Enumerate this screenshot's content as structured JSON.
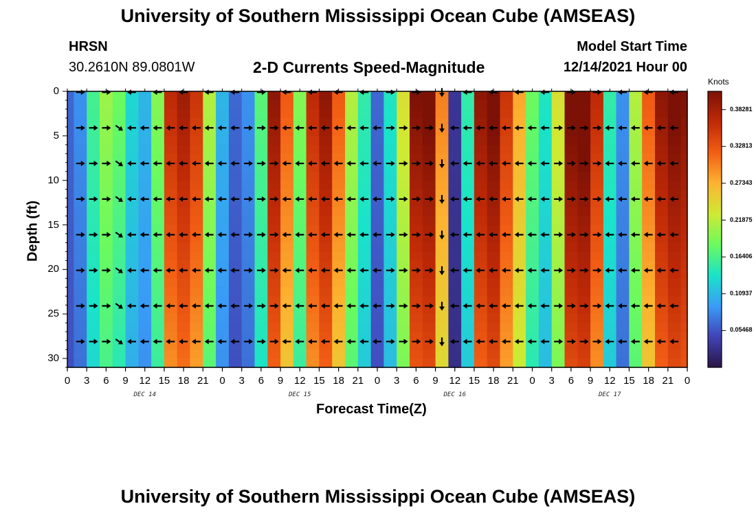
{
  "header": {
    "title_top": "University of Southern Mississippi Ocean Cube (AMSEAS)",
    "title_bottom": "University of Southern Mississippi Ocean Cube (AMSEAS)",
    "station": "HRSN",
    "coords": "30.2610N  89.0801W",
    "product": "2-D Currents Speed-Magnitude",
    "model_start_label": "Model Start Time",
    "model_start_value": "12/14/2021 Hour 00"
  },
  "colorbar": {
    "unit": "Knots",
    "ticks": [
      "0.38281",
      "0.32813",
      "0.27343",
      "0.21875",
      "0.16406",
      "0.10937",
      "0.05468"
    ],
    "colors": [
      "#2b1547",
      "#4143b6",
      "#3a9bf6",
      "#1ae3c9",
      "#6bfa5f",
      "#cfea33",
      "#fdb331",
      "#f25e14",
      "#c02a07",
      "#7c1106"
    ]
  },
  "chart_data": {
    "type": "heatmap",
    "title": "2-D Currents Speed-Magnitude",
    "xlabel": "Forecast Time(Z)",
    "ylabel": "Depth (ft)",
    "x_tick_labels": [
      "0",
      "3",
      "6",
      "9",
      "12",
      "15",
      "18",
      "21",
      "0",
      "3",
      "6",
      "9",
      "12",
      "15",
      "18",
      "21",
      "0",
      "3",
      "6",
      "9",
      "12",
      "15",
      "18",
      "21",
      "0",
      "3",
      "6",
      "9",
      "12",
      "15",
      "18",
      "21",
      "0"
    ],
    "day_labels": [
      "DEC 14",
      "DEC 15",
      "DEC 16",
      "DEC 17"
    ],
    "y_ticks": [
      0,
      5,
      10,
      15,
      20,
      25,
      30
    ],
    "ylim": [
      0,
      31
    ],
    "xlim_hours": [
      0,
      96
    ],
    "zlim_knots": [
      0.0,
      0.41
    ],
    "times_hours": [
      0,
      2,
      4,
      6,
      8,
      10,
      12,
      14,
      16,
      18,
      20,
      22,
      24,
      26,
      28,
      30,
      32,
      34,
      36,
      38,
      40,
      42,
      44,
      46,
      48,
      50,
      52,
      54,
      56,
      58,
      60,
      62,
      64,
      66,
      68,
      70,
      72,
      74,
      76,
      78,
      80,
      82,
      84,
      86,
      88,
      90,
      92,
      94,
      96
    ],
    "depths_ft": [
      0,
      4,
      8,
      12,
      16,
      20,
      24,
      28
    ],
    "profile_speed_knots": [
      0.06,
      0.08,
      0.15,
      0.19,
      0.17,
      0.12,
      0.1,
      0.18,
      0.34,
      0.36,
      0.33,
      0.2,
      0.1,
      0.06,
      0.08,
      0.16,
      0.37,
      0.3,
      0.18,
      0.34,
      0.37,
      0.3,
      0.2,
      0.14,
      0.06,
      0.13,
      0.22,
      0.38,
      0.39,
      0.28,
      0.03,
      0.14,
      0.37,
      0.39,
      0.33,
      0.26,
      0.17,
      0.13,
      0.22,
      0.39,
      0.4,
      0.34,
      0.14,
      0.08,
      0.2,
      0.3,
      0.37,
      0.39,
      0.38
    ],
    "arrow_direction": [
      "E",
      "E",
      "E",
      "E",
      "SE",
      "W",
      "W",
      "W",
      "W",
      "W",
      "W",
      "W",
      "W",
      "W",
      "E",
      "E",
      "E",
      "W",
      "W",
      "W",
      "W",
      "W",
      "W",
      "W",
      "W",
      "E",
      "E",
      "E",
      "E",
      "S",
      "W",
      "W",
      "W",
      "W",
      "W",
      "W",
      "W",
      "W",
      "E",
      "E",
      "E",
      "E",
      "W",
      "W",
      "W",
      "W",
      "W",
      "W",
      "W"
    ]
  }
}
